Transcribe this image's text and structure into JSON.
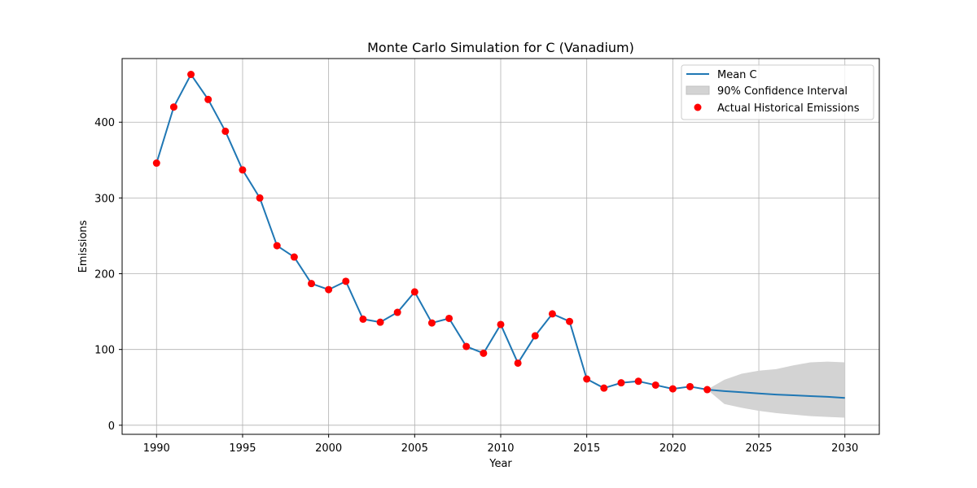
{
  "chart_data": {
    "type": "line",
    "title": "Monte Carlo Simulation for C (Vanadium)",
    "xlabel": "Year",
    "ylabel": "Emissions",
    "xlim": [
      1988,
      2032
    ],
    "ylim": [
      -12,
      484
    ],
    "xticks": [
      1990,
      1995,
      2000,
      2005,
      2010,
      2015,
      2020,
      2025,
      2030
    ],
    "yticks": [
      0,
      100,
      200,
      300,
      400
    ],
    "grid": true,
    "legend_position": "top-right",
    "legend": [
      "Mean C",
      "90% Confidence Interval",
      "Actual Historical Emissions"
    ],
    "colors": {
      "mean": "#1f77b4",
      "ci_fill": "#d3d3d3",
      "actual": "#ff0000"
    },
    "mean": {
      "name": "Mean C",
      "x": [
        1990,
        1991,
        1992,
        1993,
        1994,
        1995,
        1996,
        1997,
        1998,
        1999,
        2000,
        2001,
        2002,
        2003,
        2004,
        2005,
        2006,
        2007,
        2008,
        2009,
        2010,
        2011,
        2012,
        2013,
        2014,
        2015,
        2016,
        2017,
        2018,
        2019,
        2020,
        2021,
        2022,
        2023,
        2024,
        2025,
        2026,
        2027,
        2028,
        2029,
        2030
      ],
      "y": [
        346,
        420,
        463,
        430,
        388,
        337,
        300,
        237,
        222,
        187,
        179,
        190,
        140,
        136,
        149,
        176,
        135,
        141,
        104,
        95,
        133,
        82,
        118,
        147,
        137,
        61,
        49,
        56,
        58,
        53,
        48,
        51,
        47,
        45,
        43.5,
        42,
        40.5,
        39.5,
        38.5,
        37.5,
        36
      ]
    },
    "confidence_interval": {
      "name": "90% Confidence Interval",
      "x": [
        2022,
        2023,
        2024,
        2025,
        2026,
        2027,
        2028,
        2029,
        2030
      ],
      "lower": [
        47,
        28,
        23,
        19,
        16,
        14,
        12,
        11,
        10
      ],
      "upper": [
        47,
        60,
        68,
        72,
        74,
        79,
        83,
        84,
        83
      ]
    },
    "actual": {
      "name": "Actual Historical Emissions",
      "x": [
        1990,
        1991,
        1992,
        1993,
        1994,
        1995,
        1996,
        1997,
        1998,
        1999,
        2000,
        2001,
        2002,
        2003,
        2004,
        2005,
        2006,
        2007,
        2008,
        2009,
        2010,
        2011,
        2012,
        2013,
        2014,
        2015,
        2016,
        2017,
        2018,
        2019,
        2020,
        2021,
        2022
      ],
      "y": [
        346,
        420,
        463,
        430,
        388,
        337,
        300,
        237,
        222,
        187,
        179,
        190,
        140,
        136,
        149,
        176,
        135,
        141,
        104,
        95,
        133,
        82,
        118,
        147,
        137,
        61,
        49,
        56,
        58,
        53,
        48,
        51,
        47
      ]
    }
  }
}
